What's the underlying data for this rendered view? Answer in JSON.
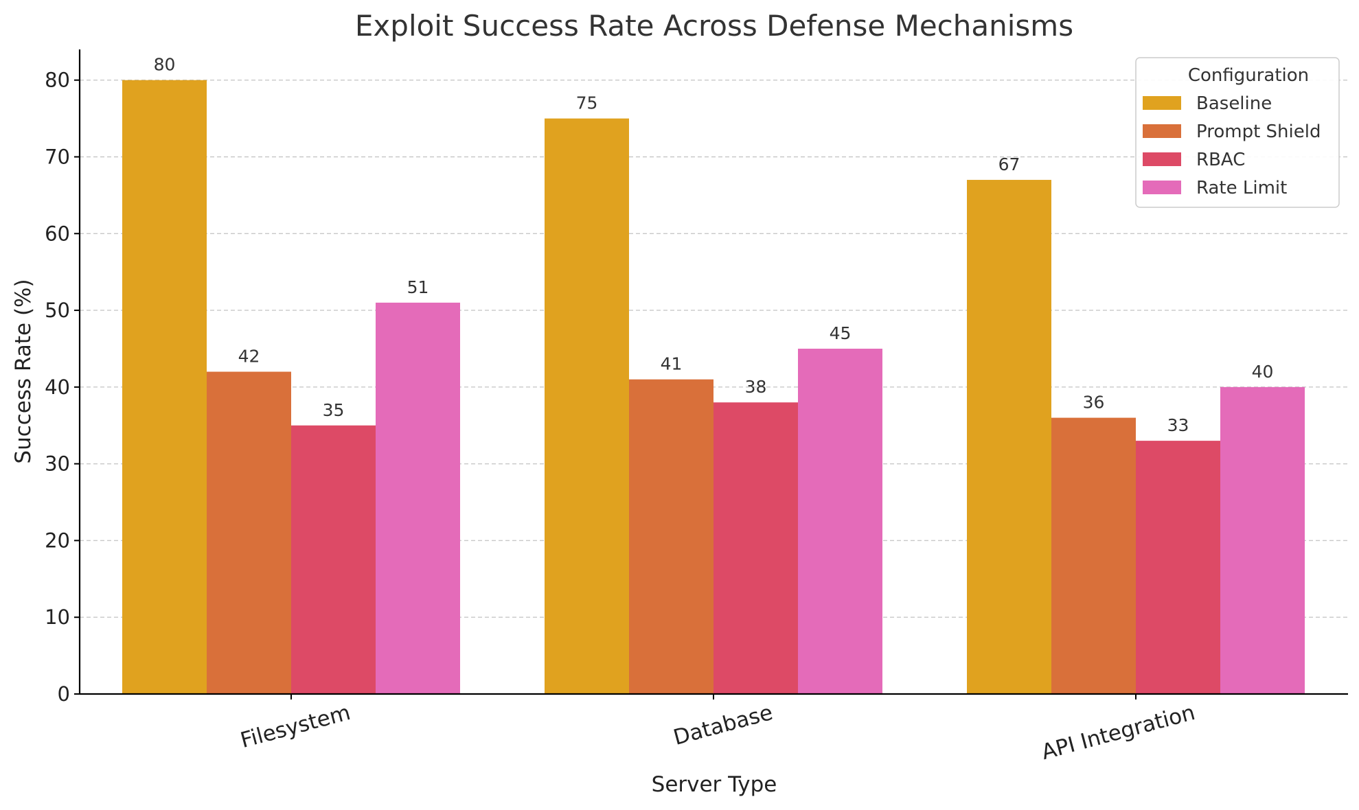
{
  "chart_data": {
    "type": "bar",
    "title": "Exploit Success Rate Across Defense Mechanisms",
    "xlabel": "Server Type",
    "ylabel": "Success Rate (%)",
    "categories": [
      "Filesystem",
      "Database",
      "API Integration"
    ],
    "series": [
      {
        "name": "Baseline",
        "values": [
          80,
          75,
          67
        ],
        "color": "#E0A21F"
      },
      {
        "name": "Prompt Shield",
        "values": [
          42,
          41,
          36
        ],
        "color": "#D9703A"
      },
      {
        "name": "RBAC",
        "values": [
          35,
          38,
          33
        ],
        "color": "#DD4A66"
      },
      {
        "name": "Rate Limit",
        "values": [
          51,
          45,
          40
        ],
        "color": "#E46BB9"
      }
    ],
    "ylim": [
      0,
      84
    ],
    "yticks": [
      0,
      10,
      20,
      30,
      40,
      50,
      60,
      70,
      80
    ],
    "grid": true,
    "legend": {
      "title": "Configuration",
      "placement": "top-right"
    }
  }
}
